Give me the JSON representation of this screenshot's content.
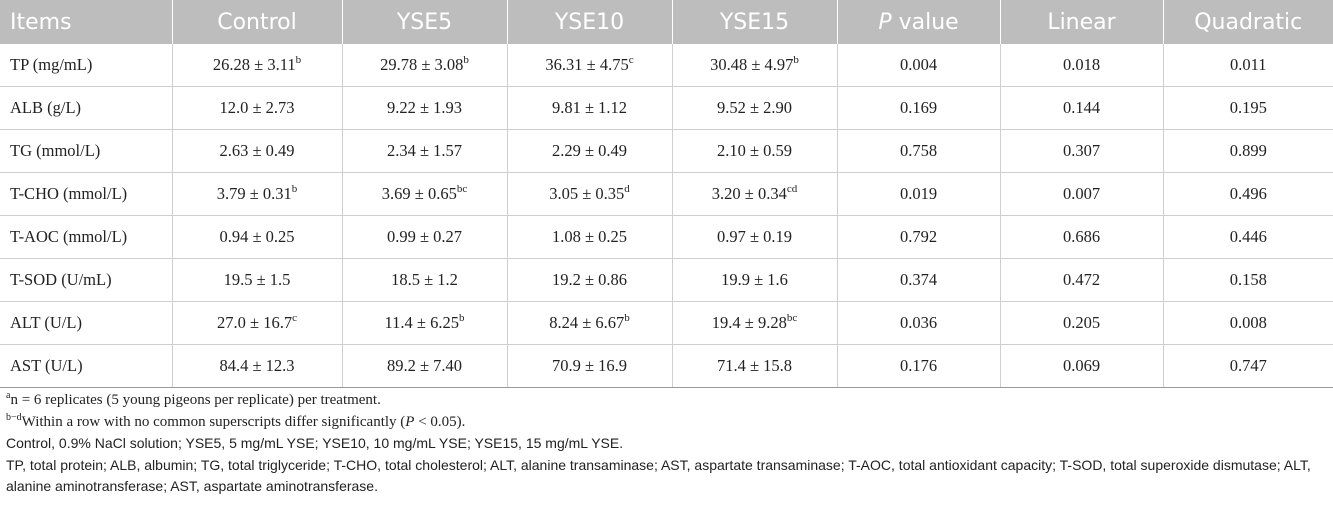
{
  "headers": {
    "items": "Items",
    "control": "Control",
    "yse5": "YSE5",
    "yse10": "YSE10",
    "yse15": "YSE15",
    "p_italic": "P",
    "p_rest": " value",
    "linear": "Linear",
    "quadratic": "Quadratic"
  },
  "rows": [
    {
      "item": "TP (mg/mL)",
      "c": "26.28 ± 3.11",
      "cs": "b",
      "y5": "29.78 ± 3.08",
      "y5s": "b",
      "y10": "36.31 ± 4.75",
      "y10s": "c",
      "y15": "30.48 ± 4.97",
      "y15s": "b",
      "p": "0.004",
      "lin": "0.018",
      "quad": "0.011"
    },
    {
      "item": "ALB (g/L)",
      "c": "12.0 ± 2.73",
      "cs": "",
      "y5": "9.22 ± 1.93",
      "y5s": "",
      "y10": "9.81 ± 1.12",
      "y10s": "",
      "y15": "9.52 ± 2.90",
      "y15s": "",
      "p": "0.169",
      "lin": "0.144",
      "quad": "0.195"
    },
    {
      "item": "TG (mmol/L)",
      "c": "2.63 ± 0.49",
      "cs": "",
      "y5": "2.34 ± 1.57",
      "y5s": "",
      "y10": "2.29 ± 0.49",
      "y10s": "",
      "y15": "2.10 ± 0.59",
      "y15s": "",
      "p": "0.758",
      "lin": "0.307",
      "quad": "0.899"
    },
    {
      "item": "T-CHO (mmol/L)",
      "c": "3.79 ± 0.31",
      "cs": "b",
      "y5": "3.69 ± 0.65",
      "y5s": "bc",
      "y10": "3.05 ± 0.35",
      "y10s": "d",
      "y15": "3.20 ± 0.34",
      "y15s": "cd",
      "p": "0.019",
      "lin": "0.007",
      "quad": "0.496"
    },
    {
      "item": "T-AOC (mmol/L)",
      "c": "0.94 ± 0.25",
      "cs": "",
      "y5": "0.99 ± 0.27",
      "y5s": "",
      "y10": "1.08 ± 0.25",
      "y10s": "",
      "y15": "0.97 ± 0.19",
      "y15s": "",
      "p": "0.792",
      "lin": "0.686",
      "quad": "0.446"
    },
    {
      "item": "T-SOD (U/mL)",
      "c": "19.5 ± 1.5",
      "cs": "",
      "y5": "18.5 ± 1.2",
      "y5s": "",
      "y10": "19.2 ± 0.86",
      "y10s": "",
      "y15": "19.9 ± 1.6",
      "y15s": "",
      "p": "0.374",
      "lin": "0.472",
      "quad": "0.158"
    },
    {
      "item": "ALT (U/L)",
      "c": "27.0 ± 16.7",
      "cs": "c",
      "y5": "11.4 ± 6.25",
      "y5s": "b",
      "y10": "8.24 ± 6.67",
      "y10s": "b",
      "y15": "19.4 ± 9.28",
      "y15s": "bc",
      "p": "0.036",
      "lin": "0.205",
      "quad": "0.008"
    },
    {
      "item": "AST (U/L)",
      "c": "84.4 ± 12.3",
      "cs": "",
      "y5": "89.2 ± 7.40",
      "y5s": "",
      "y10": "70.9 ± 16.9",
      "y10s": "",
      "y15": "71.4 ± 15.8",
      "y15s": "",
      "p": "0.176",
      "lin": "0.069",
      "quad": "0.747"
    }
  ],
  "footnotes": {
    "a_sup": "a",
    "a_text": "n = 6 replicates (5 young pigeons per replicate) per treatment.",
    "b_sup": "b−d",
    "b_text1": "Within a row with no common superscripts differ significantly (",
    "b_p": "P",
    "b_text2": " < 0.05).",
    "line3": "Control, 0.9% NaCl solution; YSE5, 5 mg/mL YSE; YSE10, 10 mg/mL YSE; YSE15, 15 mg/mL YSE.",
    "line4": "TP, total protein; ALB, albumin; TG, total triglyceride; T-CHO, total cholesterol; ALT, alanine transaminase; AST, aspartate transaminase; T-AOC, total antioxidant capacity; T-SOD, total superoxide dismutase; ALT, alanine aminotransferase; AST, aspartate aminotransferase."
  }
}
